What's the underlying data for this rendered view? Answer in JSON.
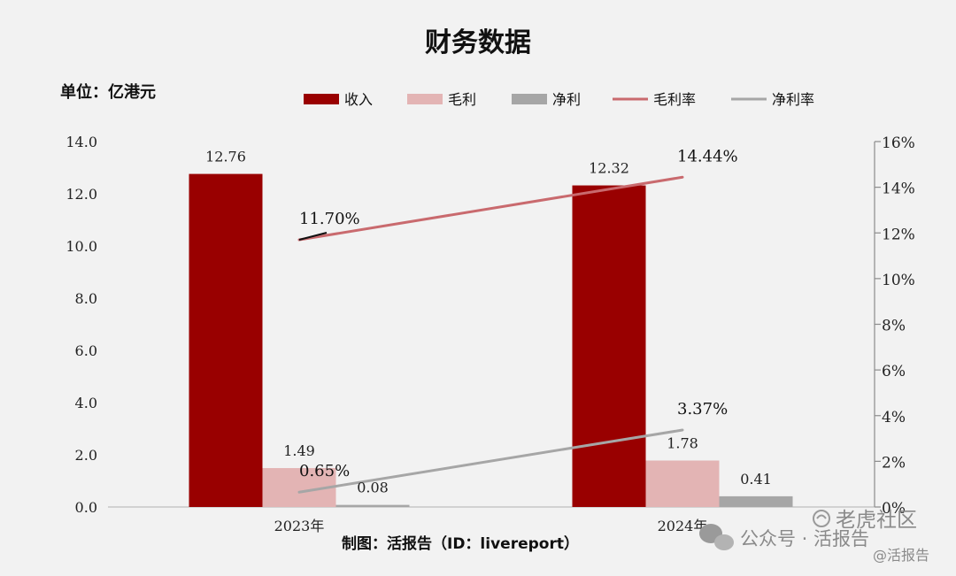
{
  "colors": {
    "background": "#f2f2f2",
    "revenue": "#990000",
    "gross_profit": "#e3b4b4",
    "net_profit": "#a6a6a6",
    "gross_margin": "#c96a6e",
    "net_margin": "#a6a6a6",
    "text": "#111111"
  },
  "watermark": {
    "wechat": "公众号 · 活报告",
    "tiger": "老虎社区",
    "tiger_sub": "@活报告"
  },
  "chart_data": {
    "type": "bar",
    "title": "财务数据",
    "unit_label": "单位：亿港元",
    "source": "制图：活报告（ID：livereport）",
    "categories": [
      "2023年",
      "2024年"
    ],
    "series": [
      {
        "name": "收入",
        "kind": "bar",
        "axis": "left",
        "values": [
          12.76,
          12.32
        ],
        "labels": [
          "12.76",
          "12.32"
        ]
      },
      {
        "name": "毛利",
        "kind": "bar",
        "axis": "left",
        "values": [
          1.49,
          1.78
        ],
        "labels": [
          "1.49",
          "1.78"
        ]
      },
      {
        "name": "净利",
        "kind": "bar",
        "axis": "left",
        "values": [
          0.08,
          0.41
        ],
        "labels": [
          "0.08",
          "0.41"
        ]
      },
      {
        "name": "毛利率",
        "kind": "line",
        "axis": "right",
        "values": [
          11.7,
          14.44
        ],
        "labels": [
          "11.70%",
          "14.44%"
        ]
      },
      {
        "name": "净利率",
        "kind": "line",
        "axis": "right",
        "values": [
          0.65,
          3.37
        ],
        "labels": [
          "0.65%",
          "3.37%"
        ]
      }
    ],
    "y_left": {
      "min": 0,
      "max": 14,
      "ticks": [
        "0.0",
        "2.0",
        "4.0",
        "6.0",
        "8.0",
        "10.0",
        "12.0",
        "14.0"
      ]
    },
    "y_right": {
      "min": 0,
      "max": 16,
      "ticks": [
        "0%",
        "2%",
        "4%",
        "6%",
        "8%",
        "10%",
        "12%",
        "14%",
        "16%"
      ]
    },
    "legend": {
      "position": "top"
    },
    "grid": false
  }
}
